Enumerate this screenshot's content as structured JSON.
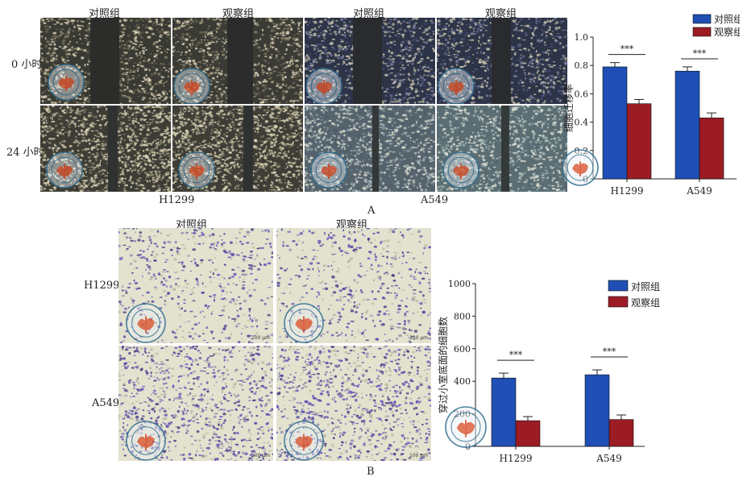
{
  "panelA": {
    "col_titles": [
      "对照组",
      "观察组",
      "对照组",
      "观察组"
    ],
    "row_labels": [
      "0 小时",
      "24 小时"
    ],
    "cell_lines": [
      "H1299",
      "A549"
    ],
    "letter": "A"
  },
  "panelB": {
    "col_titles": [
      "对照组",
      "观察组"
    ],
    "row_labels": [
      "H1299",
      "A549"
    ],
    "letter": "B",
    "scale_label": "100 μm"
  },
  "watermark": {
    "text_top": "中 华 医 学",
    "text_ring": "CHINESE MEDICAL ASSOCIATION"
  },
  "colors": {
    "control": "#1f4fb4",
    "observation": "#9b1c24",
    "error": "#222222"
  },
  "chart_data": [
    {
      "type": "bar",
      "categories": [
        "H1299",
        "A549"
      ],
      "series": [
        {
          "name": "对照组",
          "values": [
            0.79,
            0.76
          ],
          "errors": [
            0.03,
            0.03
          ]
        },
        {
          "name": "观察组",
          "values": [
            0.53,
            0.43
          ],
          "errors": [
            0.03,
            0.035
          ]
        }
      ],
      "ylabel": "细胞迁移率",
      "ylim": [
        0,
        1.0
      ],
      "yticks": [
        "0",
        "0.2",
        "0.4",
        "0.6",
        "0.8",
        "1.0"
      ],
      "significance": [
        "***",
        "***"
      ],
      "legend": "top-right"
    },
    {
      "type": "bar",
      "categories": [
        "H1299",
        "A549"
      ],
      "series": [
        {
          "name": "对照组",
          "values": [
            420,
            440
          ],
          "errors": [
            30,
            30
          ]
        },
        {
          "name": "观察组",
          "values": [
            158,
            165
          ],
          "errors": [
            25,
            28
          ]
        }
      ],
      "ylabel": "穿过小室底面的细胞数",
      "ylim": [
        0,
        1000
      ],
      "yticks": [
        "0",
        "200",
        "400",
        "600",
        "800",
        "1000"
      ],
      "significance": [
        "***",
        "***"
      ],
      "legend": "top-right"
    }
  ]
}
